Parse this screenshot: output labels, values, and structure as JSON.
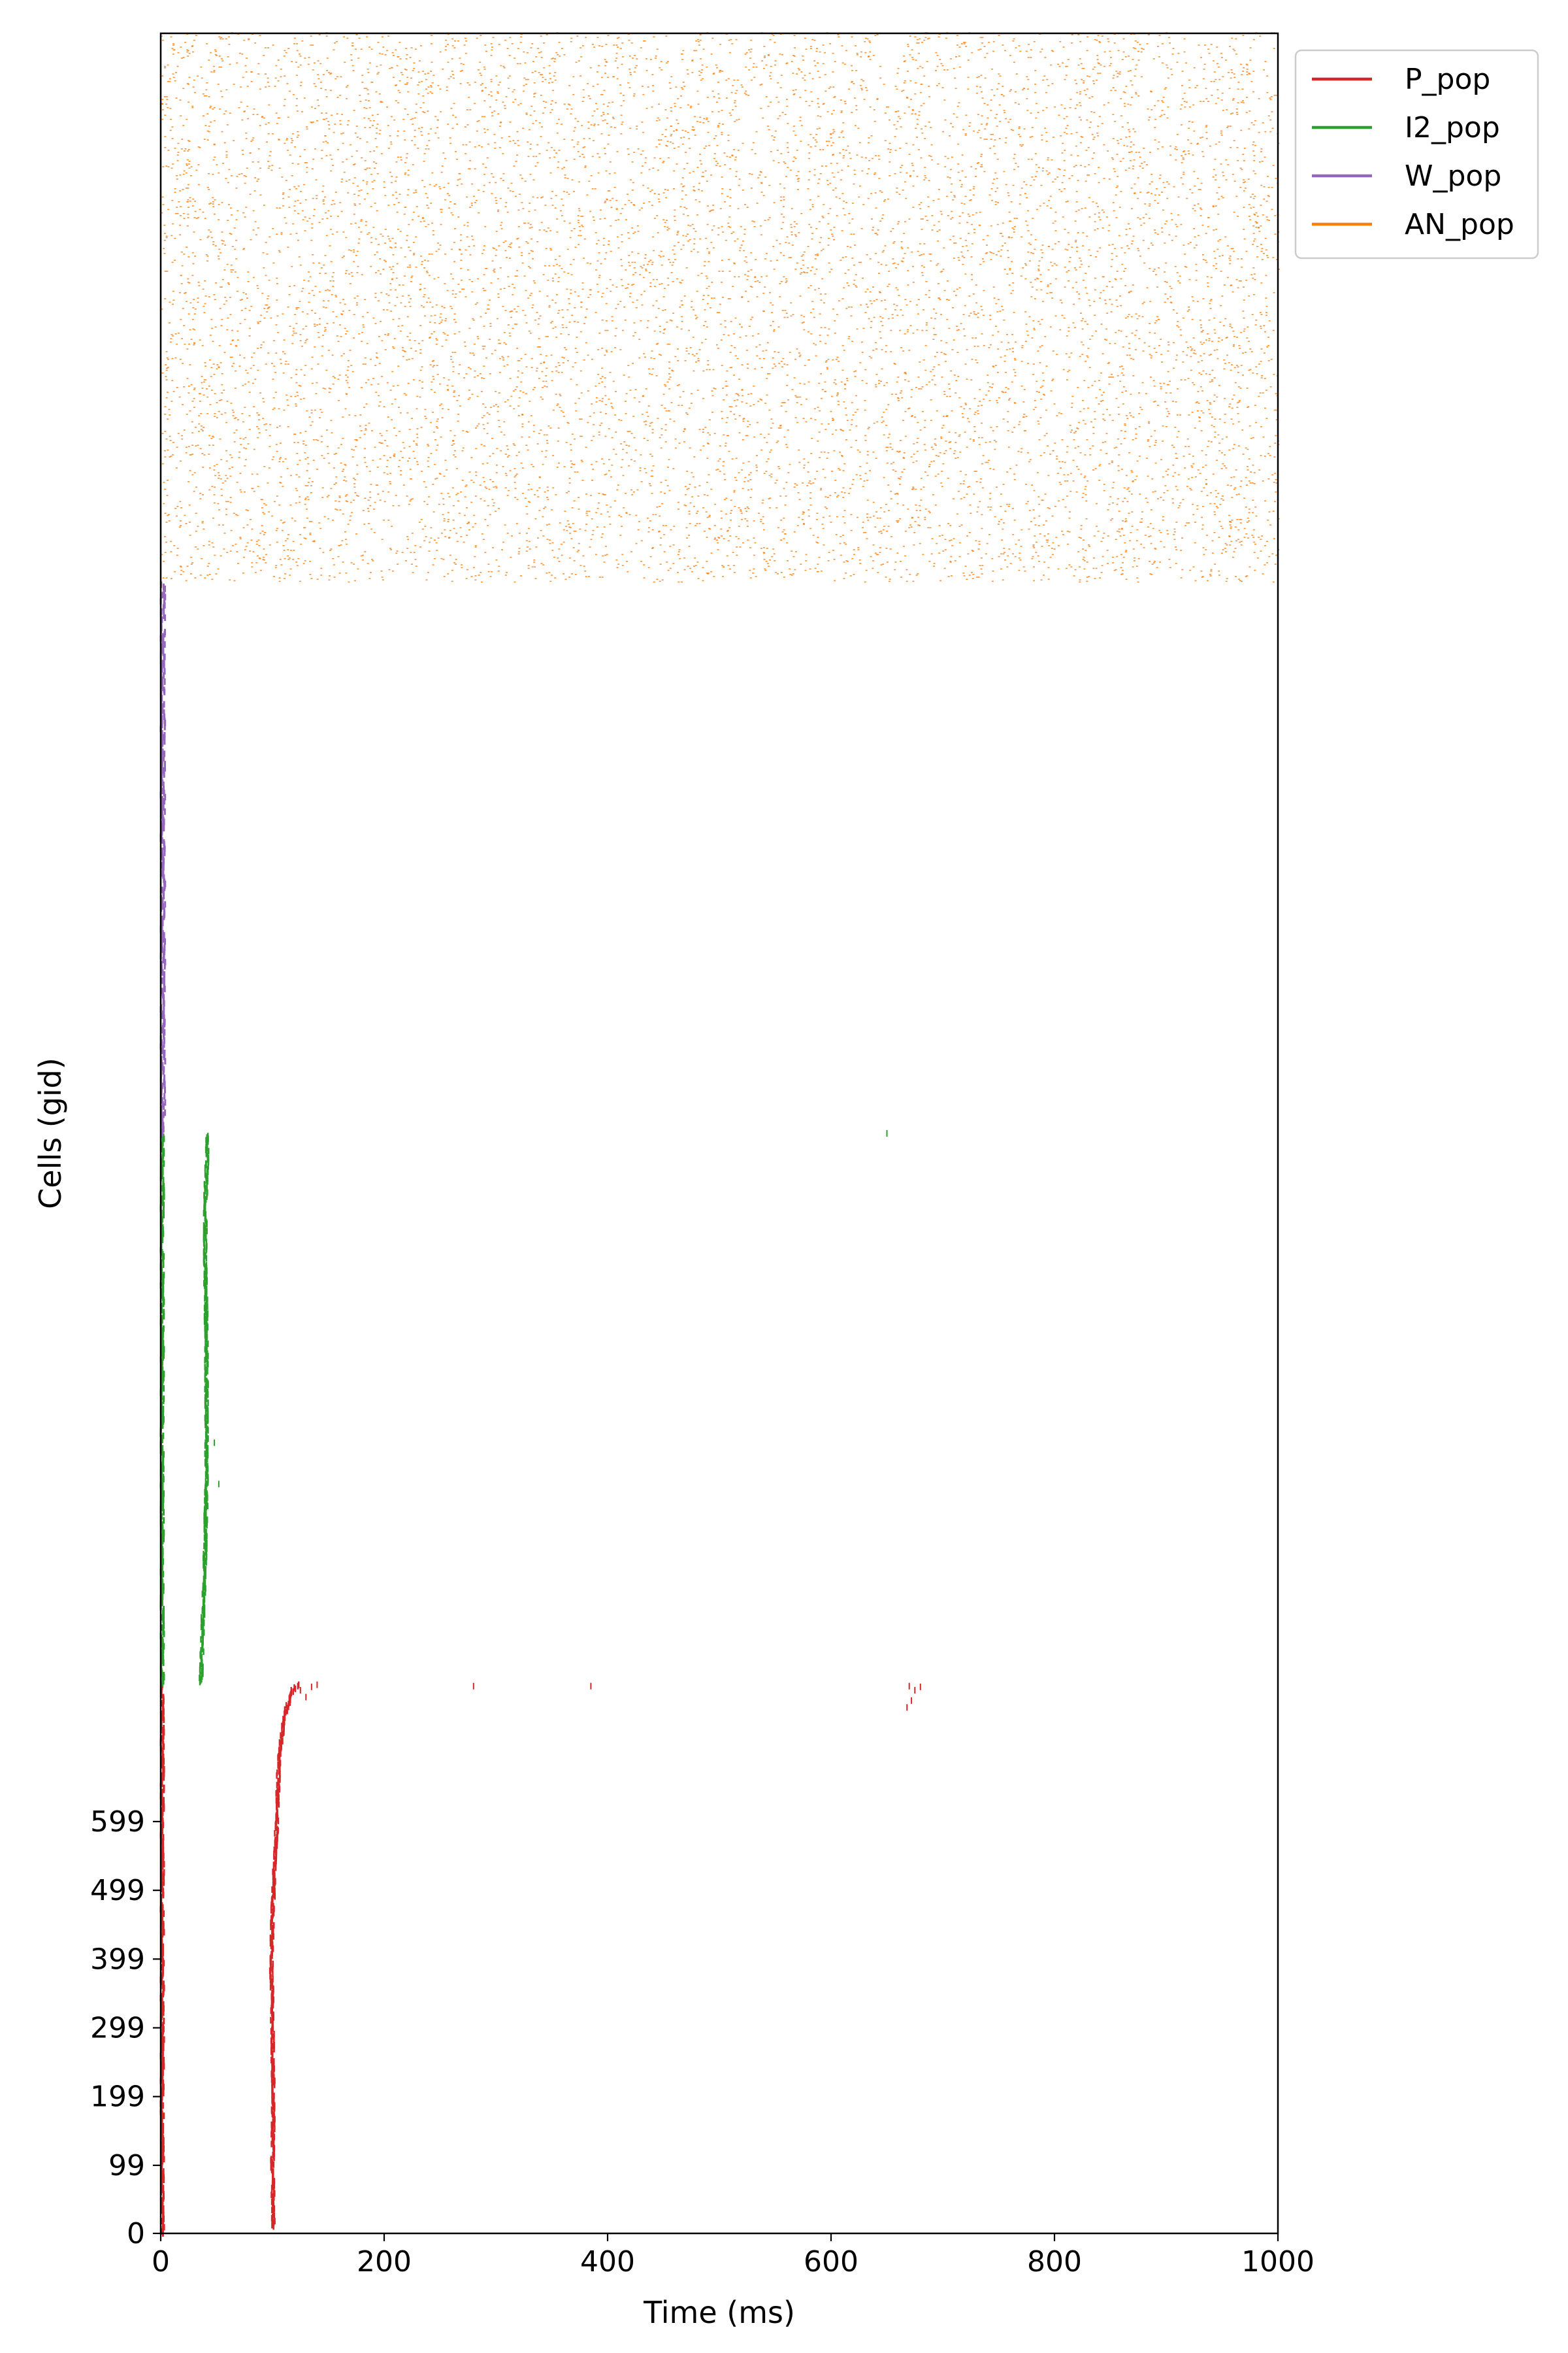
{
  "chart_data": {
    "type": "scatter",
    "title": "",
    "xlabel": "Time (ms)",
    "ylabel": "Cells (gid)",
    "xlim": [
      0,
      1000
    ],
    "ylim": [
      0,
      3200
    ],
    "xticks": [
      0,
      200,
      400,
      600,
      800,
      1000
    ],
    "yticks": [
      0,
      99,
      199,
      299,
      399,
      499,
      599
    ],
    "grid": false,
    "legend_position": "outside-top-right",
    "series": [
      {
        "name": "P_pop",
        "color": "#d62728",
        "gid_range": [
          0,
          800
        ],
        "spike_time_band_ms": [
          0,
          3
        ],
        "wave": [
          [
            10,
            101
          ],
          [
            100,
            100
          ],
          [
            200,
            101
          ],
          [
            300,
            100
          ],
          [
            400,
            99
          ],
          [
            500,
            101
          ],
          [
            600,
            104
          ],
          [
            700,
            106
          ],
          [
            760,
            112
          ],
          [
            790,
            118
          ],
          [
            800,
            124
          ]
        ],
        "extra_spikes": [
          [
            125,
            790
          ],
          [
            135,
            795
          ],
          [
            140,
            798
          ],
          [
            130,
            780
          ],
          [
            280,
            796
          ],
          [
            385,
            796
          ],
          [
            670,
            796
          ],
          [
            675,
            790
          ],
          [
            672,
            775
          ],
          [
            668,
            765
          ],
          [
            680,
            795
          ]
        ]
      },
      {
        "name": "I2_pop",
        "color": "#2ca02c",
        "gid_range": [
          800,
          1600
        ],
        "spike_time_band_ms": [
          0,
          3
        ],
        "wave": [
          [
            802,
            36
          ],
          [
            900,
            38
          ],
          [
            1000,
            40
          ],
          [
            1100,
            41
          ],
          [
            1200,
            41
          ],
          [
            1300,
            41
          ],
          [
            1400,
            40
          ],
          [
            1500,
            40
          ],
          [
            1598,
            42
          ]
        ],
        "extra_spikes": [
          [
            650,
            1600
          ],
          [
            52,
            1090
          ],
          [
            48,
            1150
          ]
        ]
      },
      {
        "name": "W_pop",
        "color": "#9467bd",
        "gid_range": [
          1600,
          2400
        ],
        "spike_time_band_ms": [
          0,
          4
        ]
      },
      {
        "name": "AN_pop",
        "color": "#ff7f0e",
        "gid_range": [
          2400,
          3200
        ],
        "spike_time_range_ms": [
          0,
          1000
        ]
      }
    ]
  }
}
